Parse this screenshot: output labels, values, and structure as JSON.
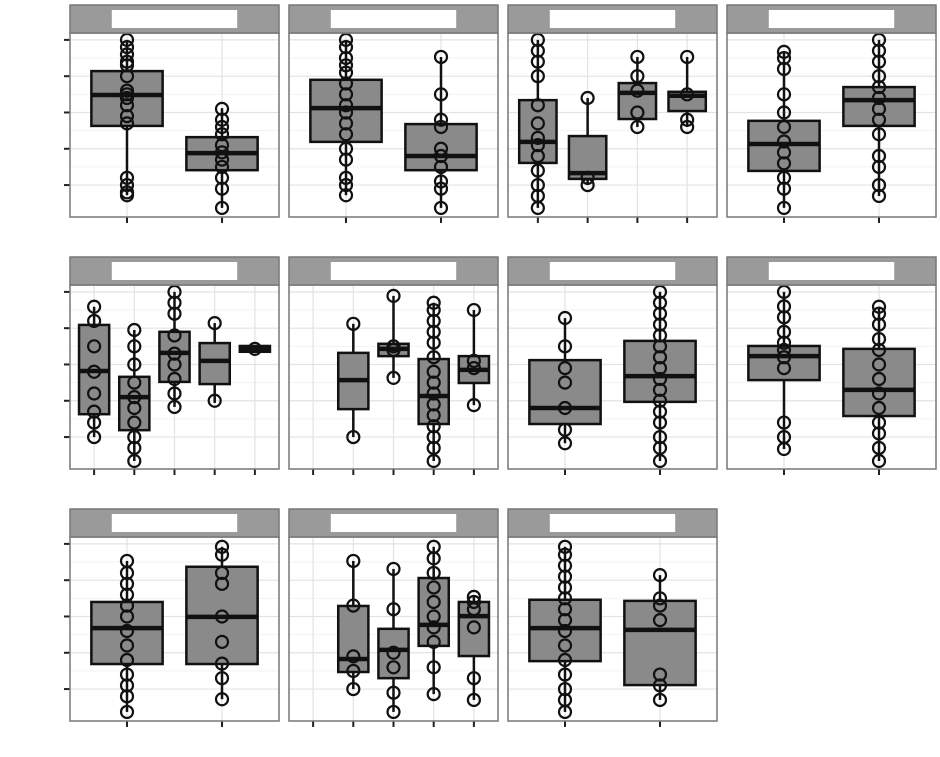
{
  "chart_data": [
    {
      "type": "box",
      "ylim": [
        0.12,
        5.19
      ],
      "yticks": [
        1,
        2,
        3,
        4,
        5
      ],
      "categories": [
        null,
        null
      ],
      "boxes": [
        {
          "low": 0.72,
          "q1": 2.63,
          "median": 3.48,
          "q3": 4.14,
          "high": 5,
          "points": [
            5,
            4.8,
            4.6,
            4.4,
            4.3,
            4.0,
            3.6,
            3.5,
            3.4,
            3.2,
            2.9,
            2.7,
            1.2,
            1.0,
            0.8,
            0.72
          ]
        },
        {
          "low": 0.37,
          "q1": 1.41,
          "median": 1.88,
          "q3": 2.32,
          "high": 3.12,
          "points": [
            3.1,
            2.8,
            2.6,
            2.4,
            2.1,
            1.9,
            1.7,
            1.5,
            1.2,
            0.9,
            0.37
          ]
        }
      ]
    },
    {
      "type": "box",
      "ylim": [
        0.12,
        5.19
      ],
      "yticks": [
        1,
        2,
        3,
        4,
        5
      ],
      "categories": [
        null,
        null
      ],
      "boxes": [
        {
          "low": 0.72,
          "q1": 2.19,
          "median": 3.12,
          "q3": 3.9,
          "high": 5,
          "points": [
            5,
            4.8,
            4.5,
            4.3,
            4.1,
            3.8,
            3.5,
            3.2,
            3.0,
            2.7,
            2.4,
            2.0,
            1.7,
            1.2,
            1.0,
            0.72
          ]
        },
        {
          "low": 0.37,
          "q1": 1.41,
          "median": 1.8,
          "q3": 2.68,
          "high": 4.53,
          "points": [
            4.53,
            3.5,
            2.8,
            2.6,
            2.0,
            1.8,
            1.5,
            1.1,
            0.9,
            0.37
          ]
        }
      ]
    },
    {
      "type": "box",
      "ylim": [
        0.12,
        5.19
      ],
      "yticks": [
        1,
        2,
        3,
        4,
        5
      ],
      "categories": [
        null,
        null,
        null,
        null
      ],
      "boxes": [
        {
          "low": 0.37,
          "q1": 1.61,
          "median": 2.19,
          "q3": 3.34,
          "high": 5,
          "points": [
            5,
            4.7,
            4.4,
            4.0,
            3.2,
            2.7,
            2.3,
            2.1,
            1.8,
            1.4,
            1.0,
            0.7,
            0.37
          ]
        },
        {
          "low": 1.0,
          "q1": 1.17,
          "median": 1.33,
          "q3": 2.35,
          "high": 3.4,
          "points": [
            3.4,
            1.2,
            1.0
          ]
        },
        {
          "low": 2.6,
          "q1": 2.82,
          "median": 3.54,
          "q3": 3.81,
          "high": 4.53,
          "points": [
            4.53,
            4.0,
            3.6,
            3.0,
            2.6
          ]
        },
        {
          "low": 2.6,
          "q1": 3.04,
          "median": 3.46,
          "q3": 3.57,
          "high": 4.53,
          "points": [
            4.53,
            3.5,
            2.8,
            2.6
          ]
        }
      ]
    },
    {
      "type": "box",
      "ylim": [
        0.12,
        5.19
      ],
      "yticks": [
        1,
        2,
        3,
        4,
        5
      ],
      "categories": [
        null,
        null
      ],
      "boxes": [
        {
          "low": 0.37,
          "q1": 1.39,
          "median": 2.13,
          "q3": 2.77,
          "high": 4.67,
          "points": [
            4.67,
            4.5,
            4.2,
            3.5,
            3.0,
            2.6,
            2.2,
            1.9,
            1.6,
            1.2,
            0.9,
            0.37
          ]
        },
        {
          "low": 0.7,
          "q1": 2.63,
          "median": 3.34,
          "q3": 3.7,
          "high": 5,
          "points": [
            5,
            4.7,
            4.4,
            4.0,
            3.7,
            3.4,
            3.1,
            2.8,
            2.4,
            1.8,
            1.5,
            1.0,
            0.7
          ]
        }
      ]
    },
    {
      "type": "box",
      "ylim": [
        0.12,
        5.19
      ],
      "yticks": [
        1,
        2,
        3,
        4,
        5
      ],
      "categories": [
        null,
        null,
        null,
        null,
        null
      ],
      "boxes": [
        {
          "low": 1.0,
          "q1": 1.63,
          "median": 2.82,
          "q3": 4.09,
          "high": 4.59,
          "points": [
            4.59,
            4.2,
            3.5,
            2.8,
            2.2,
            1.7,
            1.4,
            1.0
          ]
        },
        {
          "low": 0.34,
          "q1": 1.19,
          "median": 2.1,
          "q3": 2.66,
          "high": 3.95,
          "points": [
            3.95,
            3.5,
            3.0,
            2.5,
            2.1,
            1.8,
            1.4,
            1.0,
            0.7,
            0.34
          ]
        },
        {
          "low": 1.83,
          "q1": 2.52,
          "median": 3.32,
          "q3": 3.9,
          "high": 5,
          "points": [
            5,
            4.7,
            4.4,
            3.8,
            3.3,
            3.0,
            2.6,
            2.2,
            1.83
          ]
        },
        {
          "low": 1.94,
          "q1": 2.46,
          "median": 3.1,
          "q3": 3.59,
          "high": 4.14,
          "points": [
            4.14,
            2.0
          ]
        },
        {
          "low": 3.35,
          "q1": 3.35,
          "median": 3.43,
          "q3": 3.51,
          "high": 3.51,
          "points": [
            3.43
          ]
        }
      ]
    },
    {
      "type": "box",
      "ylim": [
        0.12,
        5.19
      ],
      "yticks": [
        1,
        2,
        3,
        4,
        5
      ],
      "categories": [
        null,
        null,
        null,
        null,
        null
      ],
      "boxes": [
        null,
        {
          "low": 1.0,
          "q1": 1.77,
          "median": 2.57,
          "q3": 3.32,
          "high": 4.12,
          "points": [
            4.12,
            1.0
          ]
        },
        {
          "low": 2.63,
          "q1": 3.23,
          "median": 3.43,
          "q3": 3.57,
          "high": 4.89,
          "points": [
            4.89,
            3.5,
            3.4,
            2.63
          ]
        },
        {
          "low": 0.34,
          "q1": 1.36,
          "median": 2.13,
          "q3": 3.15,
          "high": 4.7,
          "points": [
            4.7,
            4.5,
            4.2,
            3.9,
            3.6,
            3.2,
            2.8,
            2.5,
            2.2,
            1.9,
            1.6,
            1.3,
            1.0,
            0.7,
            0.34
          ]
        },
        {
          "low": 1.88,
          "q1": 2.49,
          "median": 2.85,
          "q3": 3.23,
          "high": 4.5,
          "points": [
            4.5,
            3.1,
            2.9,
            1.88
          ]
        }
      ]
    },
    {
      "type": "box",
      "ylim": [
        0.12,
        5.19
      ],
      "yticks": [
        1,
        2,
        3,
        4,
        5
      ],
      "categories": [
        null,
        null
      ],
      "boxes": [
        {
          "low": 0.83,
          "q1": 1.36,
          "median": 1.8,
          "q3": 3.12,
          "high": 4.28,
          "points": [
            4.28,
            3.5,
            2.9,
            2.5,
            1.8,
            1.2,
            0.83
          ]
        },
        {
          "low": 0.34,
          "q1": 1.97,
          "median": 2.68,
          "q3": 3.65,
          "high": 5,
          "points": [
            5,
            4.7,
            4.4,
            4.1,
            3.8,
            3.5,
            3.2,
            2.9,
            2.6,
            2.3,
            2.0,
            1.7,
            1.4,
            1.0,
            0.7,
            0.34
          ]
        }
      ]
    },
    {
      "type": "box",
      "ylim": [
        0.12,
        5.19
      ],
      "yticks": [
        1,
        2,
        3,
        4,
        5
      ],
      "categories": [
        null,
        null
      ],
      "boxes": [
        {
          "low": 0.67,
          "q1": 2.57,
          "median": 3.23,
          "q3": 3.51,
          "high": 5,
          "points": [
            5,
            4.6,
            4.3,
            3.9,
            3.6,
            3.4,
            3.2,
            2.9,
            1.4,
            1.0,
            0.67
          ]
        },
        {
          "low": 0.34,
          "q1": 1.58,
          "median": 2.3,
          "q3": 3.43,
          "high": 4.59,
          "points": [
            4.59,
            4.4,
            4.1,
            3.7,
            3.4,
            3.0,
            2.6,
            2.2,
            1.8,
            1.4,
            1.1,
            0.7,
            0.34
          ]
        }
      ]
    },
    {
      "type": "box",
      "ylim": [
        0.12,
        5.19
      ],
      "yticks": [
        1,
        2,
        3,
        4,
        5
      ],
      "categories": [
        null,
        null
      ],
      "boxes": [
        {
          "low": 0.37,
          "q1": 1.69,
          "median": 2.68,
          "q3": 3.4,
          "high": 4.53,
          "points": [
            4.53,
            4.2,
            3.9,
            3.6,
            3.3,
            3.0,
            2.6,
            2.2,
            1.8,
            1.4,
            1.1,
            0.8,
            0.37
          ]
        },
        {
          "low": 0.72,
          "q1": 1.69,
          "median": 2.99,
          "q3": 4.37,
          "high": 4.92,
          "points": [
            4.92,
            4.7,
            4.2,
            3.9,
            3.0,
            2.3,
            1.7,
            1.3,
            0.72
          ]
        }
      ]
    },
    {
      "type": "box",
      "ylim": [
        0.12,
        5.19
      ],
      "yticks": [
        1,
        2,
        3,
        4,
        5
      ],
      "categories": [
        null,
        null,
        null,
        null,
        null
      ],
      "boxes": [
        null,
        {
          "low": 1.0,
          "q1": 1.47,
          "median": 1.83,
          "q3": 3.29,
          "high": 4.53,
          "points": [
            4.53,
            3.3,
            1.9,
            1.5,
            1.0
          ]
        },
        {
          "low": 0.37,
          "q1": 1.3,
          "median": 2.08,
          "q3": 2.66,
          "high": 4.31,
          "points": [
            4.31,
            3.2,
            2.0,
            1.6,
            0.9,
            0.37
          ]
        },
        {
          "low": 0.86,
          "q1": 2.19,
          "median": 2.77,
          "q3": 4.06,
          "high": 4.92,
          "points": [
            4.92,
            4.6,
            4.2,
            3.8,
            3.4,
            3.0,
            2.7,
            2.3,
            1.6,
            0.86
          ]
        },
        {
          "low": 0.7,
          "q1": 1.91,
          "median": 3.01,
          "q3": 3.4,
          "high": 3.54,
          "points": [
            3.54,
            3.4,
            3.2,
            2.7,
            1.3,
            0.7
          ]
        }
      ]
    },
    {
      "type": "box",
      "ylim": [
        0.12,
        5.19
      ],
      "yticks": [
        1,
        2,
        3,
        4,
        5
      ],
      "categories": [
        null,
        null
      ],
      "boxes": [
        {
          "low": 0.37,
          "q1": 1.77,
          "median": 2.68,
          "q3": 3.46,
          "high": 4.92,
          "points": [
            4.92,
            4.7,
            4.4,
            4.1,
            3.8,
            3.5,
            3.2,
            2.9,
            2.6,
            2.2,
            1.8,
            1.4,
            1.0,
            0.7,
            0.37
          ]
        },
        {
          "low": 0.7,
          "q1": 1.11,
          "median": 2.63,
          "q3": 3.43,
          "high": 4.14,
          "points": [
            4.14,
            3.5,
            3.3,
            2.9,
            1.4,
            1.1,
            0.7
          ]
        }
      ]
    }
  ]
}
